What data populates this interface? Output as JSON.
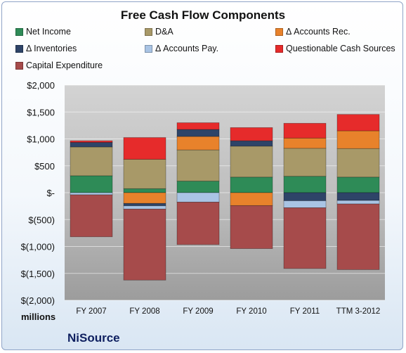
{
  "chart_data": {
    "type": "bar",
    "stacked": true,
    "title": "Free Cash Flow Components",
    "units_label": "millions",
    "company": "NiSource",
    "categories": [
      "FY 2007",
      "FY 2008",
      "FY 2009",
      "FY 2010",
      "FY 2011",
      "TTM 3-2012"
    ],
    "series": [
      {
        "name": "Net Income",
        "color": "#2e8b57",
        "values": [
          315,
          75,
          215,
          290,
          305,
          290
        ]
      },
      {
        "name": "D&A",
        "color": "#a89968",
        "values": [
          535,
          545,
          580,
          575,
          520,
          530
        ]
      },
      {
        "name": "Δ Accounts Rec.",
        "color": "#e8822b",
        "values": [
          0,
          -200,
          250,
          -240,
          190,
          330
        ]
      },
      {
        "name": "Δ Inventories",
        "color": "#2e4468",
        "values": [
          85,
          -45,
          130,
          100,
          -150,
          -145
        ]
      },
      {
        "name": "Δ Accounts Pay.",
        "color": "#a9c4e4",
        "values": [
          -40,
          -60,
          -175,
          0,
          -130,
          -65
        ]
      },
      {
        "name": "Questionable Cash Sources",
        "color": "#e62b2b",
        "values": [
          30,
          405,
          125,
          245,
          275,
          305
        ]
      },
      {
        "name": "Capital Expenditure",
        "color": "#a64b4b",
        "values": [
          -780,
          -1320,
          -790,
          -800,
          -1130,
          -1220
        ]
      }
    ],
    "ylim": [
      -2000,
      2000
    ],
    "yticks": [
      2000,
      1500,
      1000,
      500,
      0,
      -500,
      -1000,
      -1500,
      -2000
    ],
    "ytick_labels": [
      "$2,000",
      "$1,500",
      "$1,000",
      "$500",
      "$-",
      "$(500)",
      "$(1,000)",
      "$(1,500)",
      "$(2,000)"
    ],
    "grid": true,
    "legend_position": "top"
  }
}
